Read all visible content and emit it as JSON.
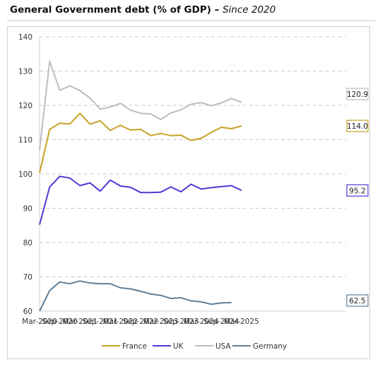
{
  "header": {
    "title_main": "General Government debt (% of GDP) – ",
    "title_sub": "Since 2020"
  },
  "chart_data": {
    "type": "line",
    "title": "General Government debt (% of GDP) – Since 2020",
    "categories": [
      "Mar-2020",
      "Jun-2020",
      "Sep-2020",
      "Dec-2020",
      "Mar-2021",
      "Jun-2021",
      "Sep-2021",
      "Dec-2021",
      "Mar-2022",
      "Jun-2022",
      "Sep-2022",
      "Dec-2022",
      "Mar-2023",
      "Jun-2023",
      "Sep-2023",
      "Dec-2023",
      "Mar-2024",
      "Jun-2024",
      "Sep-2024",
      "Dec-2024",
      "Mar-2025",
      "Jun-2025"
    ],
    "x_tick_labels": [
      "Mar-2020",
      "Sep-2020",
      "Mar-2021",
      "Sep-2021",
      "Mar-2022",
      "Sep-2022",
      "Mar-2023",
      "Sep-2023",
      "Mar-2024",
      "Sep-2024",
      "Mar-2025"
    ],
    "ylim": [
      60,
      140
    ],
    "y_ticks": [
      60,
      70,
      80,
      90,
      100,
      110,
      120,
      130,
      140
    ],
    "grid": true,
    "legend_position": "bottom",
    "series": [
      {
        "name": "France",
        "color": "#c9a227",
        "values": [
          100.3,
          113.0,
          114.8,
          114.6,
          117.7,
          114.5,
          115.5,
          112.7,
          114.2,
          112.8,
          113.0,
          111.2,
          111.8,
          111.2,
          111.3,
          109.8,
          110.4,
          112.1,
          113.6,
          113.2,
          114.0,
          null
        ],
        "end_label": "114.0"
      },
      {
        "name": "UK",
        "color": "#4a3bd6",
        "values": [
          85.2,
          96.2,
          99.3,
          98.8,
          96.6,
          97.4,
          95.0,
          98.2,
          96.5,
          96.1,
          94.6,
          94.6,
          94.7,
          96.2,
          94.8,
          97.0,
          95.6,
          96.0,
          96.3,
          96.6,
          95.2,
          null
        ],
        "end_label": "95.2"
      },
      {
        "name": "USA",
        "color": "#bdbdbd",
        "values": [
          107.0,
          132.9,
          124.4,
          125.7,
          124.3,
          122.1,
          118.9,
          119.5,
          120.6,
          118.6,
          117.7,
          117.5,
          115.9,
          117.8,
          118.7,
          120.3,
          120.8,
          119.9,
          120.7,
          122.0,
          120.9,
          null
        ],
        "end_label": "120.9"
      },
      {
        "name": "Germany",
        "color": "#5f7f99",
        "values": [
          60.0,
          66.0,
          68.5,
          68.0,
          68.8,
          68.2,
          68.0,
          68.0,
          66.8,
          66.5,
          65.8,
          65.0,
          64.6,
          63.7,
          63.9,
          63.0,
          62.7,
          62.0,
          62.4,
          62.5,
          null,
          null
        ],
        "end_label": "62.5"
      }
    ]
  }
}
